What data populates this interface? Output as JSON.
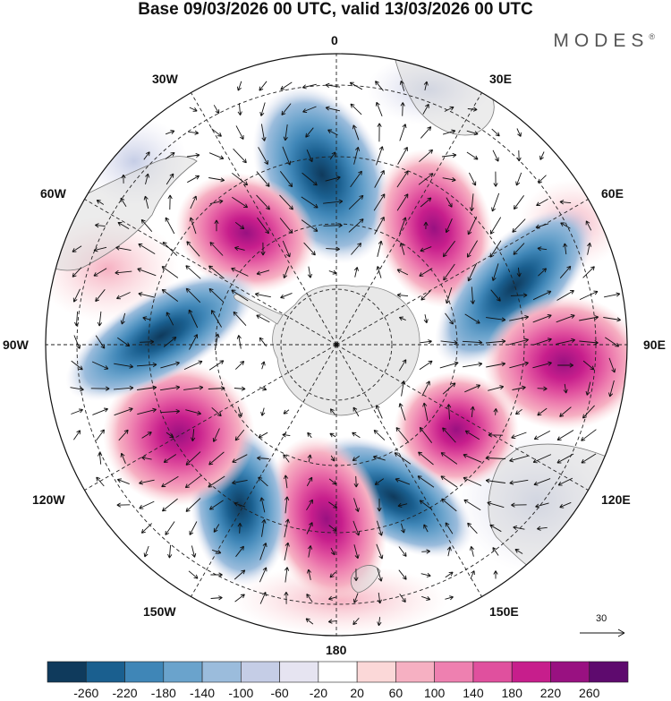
{
  "title": "Base 09/03/2026 00 UTC, valid 13/03/2026 00 UTC",
  "brand": {
    "logo_text": "MODES",
    "registered": "®"
  },
  "map": {
    "projection": "south-polar-stereographic",
    "longitude_labels": {
      "top": "0",
      "top_left": "30W",
      "top_right": "30E",
      "upper_left": "60W",
      "upper_right": "60E",
      "left": "90W",
      "right": "90E",
      "lower_left": "120W",
      "lower_right": "120E",
      "bottom_left": "150W",
      "bottom_right": "150E",
      "bottom": "180"
    },
    "vector_reference": {
      "value": "30"
    },
    "anomaly_centers": [
      {
        "sign": "negative",
        "near": "0",
        "strength": "strong"
      },
      {
        "sign": "positive",
        "near": "40W",
        "strength": "strong"
      },
      {
        "sign": "positive",
        "near": "20E",
        "strength": "strong"
      },
      {
        "sign": "negative",
        "near": "55E",
        "strength": "strong"
      },
      {
        "sign": "positive",
        "near": "95E",
        "strength": "strong"
      },
      {
        "sign": "positive",
        "near": "125E",
        "strength": "moderate"
      },
      {
        "sign": "negative",
        "near": "150E",
        "strength": "strong"
      },
      {
        "sign": "positive",
        "near": "170W",
        "strength": "strong"
      },
      {
        "sign": "negative",
        "near": "140W",
        "strength": "strong"
      },
      {
        "sign": "positive",
        "near": "115W",
        "strength": "strong"
      },
      {
        "sign": "negative",
        "near": "75W",
        "strength": "moderate"
      }
    ]
  },
  "colorbar": {
    "colors": [
      "#0f3a5c",
      "#1a5f8f",
      "#3f86b7",
      "#6aa3cc",
      "#9bbcdc",
      "#c5cde6",
      "#e6e4f1",
      "#ffffff",
      "#fbd8d8",
      "#f6b0c2",
      "#ee80b0",
      "#e0509e",
      "#c71e8c",
      "#991181",
      "#5e0a6e"
    ],
    "labels": [
      "-260",
      "-220",
      "-180",
      "-140",
      "-100",
      "-60",
      "-20",
      "20",
      "60",
      "100",
      "140",
      "180",
      "220",
      "260"
    ]
  }
}
